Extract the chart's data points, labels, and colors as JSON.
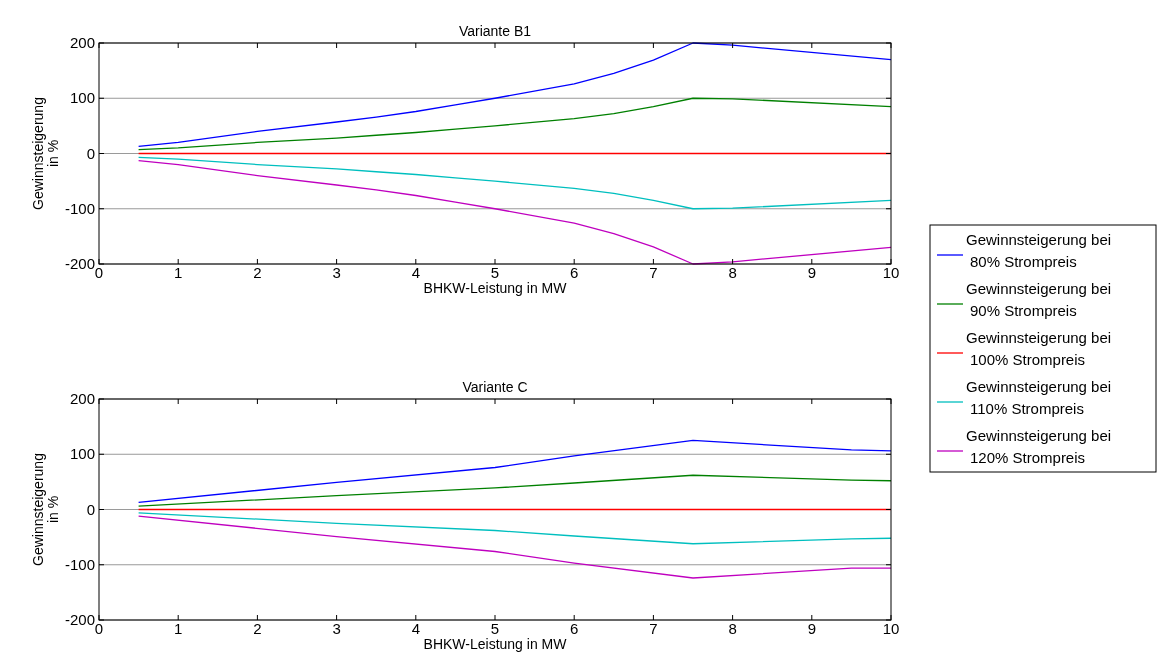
{
  "chart_data": [
    {
      "type": "line",
      "title": "Variante B1",
      "xlabel": "BHKW-Leistung in MW",
      "ylabel": "Gewinnsteigerung in %",
      "x": [
        0.5,
        1,
        2,
        3,
        3.5,
        4,
        4.5,
        5,
        6,
        6.5,
        7,
        7.5,
        8,
        10
      ],
      "xlim": [
        0,
        10
      ],
      "xticks": [
        0,
        1,
        2,
        3,
        4,
        5,
        6,
        7,
        8,
        9,
        10
      ],
      "ylim": [
        -200,
        200
      ],
      "yticks": [
        -200,
        -100,
        0,
        100,
        200
      ],
      "grid": "y",
      "legend": "right",
      "series": [
        {
          "name": "Gewinnsteigerung bei 80% Strompreis",
          "color": "#0000ff",
          "values": [
            13,
            20,
            40,
            57,
            66,
            76,
            88,
            100,
            126,
            145,
            169,
            200,
            196,
            170
          ]
        },
        {
          "name": "Gewinnsteigerung bei 90% Strompreis",
          "color": "#008000",
          "values": [
            7,
            10,
            20,
            28,
            33,
            38,
            44,
            50,
            63,
            72,
            85,
            100,
            99,
            85
          ]
        },
        {
          "name": "Gewinnsteigerung bei 100% Strompreis",
          "color": "#ff0000",
          "values": [
            0,
            0,
            0,
            0,
            0,
            0,
            0,
            0,
            0,
            0,
            0,
            0,
            0,
            0
          ]
        },
        {
          "name": "Gewinnsteigerung bei 110% Strompreis",
          "color": "#00bfbf",
          "values": [
            -7,
            -10,
            -20,
            -28,
            -33,
            -38,
            -44,
            -50,
            -63,
            -72,
            -85,
            -100,
            -99,
            -85
          ]
        },
        {
          "name": "Gewinnsteigerung bei 120% Strompreis",
          "color": "#bf00bf",
          "values": [
            -13,
            -20,
            -40,
            -57,
            -66,
            -76,
            -88,
            -100,
            -126,
            -145,
            -169,
            -200,
            -196,
            -170
          ]
        }
      ]
    },
    {
      "type": "line",
      "title": "Variante C",
      "xlabel": "BHKW-Leistung in MW",
      "ylabel": "Gewinnsteigerung in %",
      "x": [
        0.5,
        3,
        5,
        6,
        7.5,
        9.5,
        10
      ],
      "xlim": [
        0,
        10
      ],
      "xticks": [
        0,
        1,
        2,
        3,
        4,
        5,
        6,
        7,
        8,
        9,
        10
      ],
      "ylim": [
        -200,
        200
      ],
      "yticks": [
        -200,
        -100,
        0,
        100,
        200
      ],
      "grid": "y",
      "series": [
        {
          "color": "#0000ff",
          "values": [
            13,
            49,
            76,
            97,
            125,
            108,
            106
          ]
        },
        {
          "color": "#008000",
          "values": [
            6,
            25,
            39,
            48,
            62,
            53,
            52
          ]
        },
        {
          "color": "#ff0000",
          "values": [
            0,
            0,
            0,
            0,
            0,
            0,
            0
          ]
        },
        {
          "color": "#00bfbf",
          "values": [
            -6,
            -25,
            -38,
            -48,
            -62,
            -53,
            -52
          ]
        },
        {
          "color": "#bf00bf",
          "values": [
            -12,
            -49,
            -76,
            -97,
            -124,
            -106,
            -106
          ]
        }
      ]
    }
  ]
}
